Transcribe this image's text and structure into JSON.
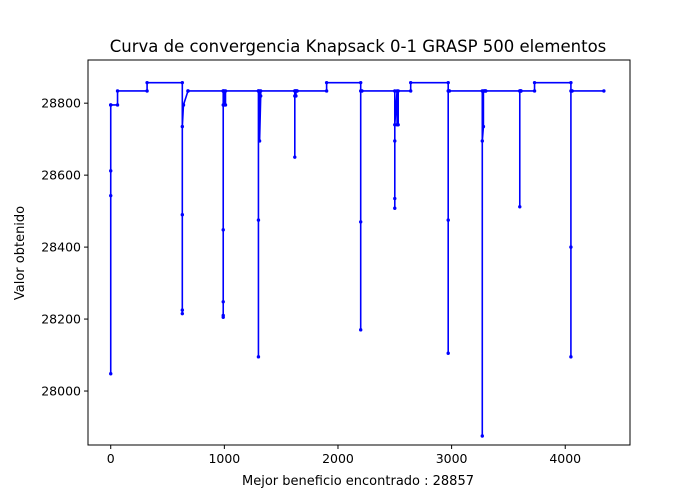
{
  "chart_data": {
    "type": "line",
    "title": "Curva de convergencia Knapsack 0-1 GRASP 500 elementos",
    "xlabel": "Mejor beneficio encontrado : 28857",
    "ylabel": "Valor obtenido",
    "xlim": [
      -200,
      4570
    ],
    "ylim": [
      27850,
      28920
    ],
    "xticks": [
      0,
      1000,
      2000,
      3000,
      4000
    ],
    "xtick_labels": [
      "0",
      "1000",
      "2000",
      "3000",
      "4000"
    ],
    "yticks": [
      28000,
      28200,
      28400,
      28600,
      28800
    ],
    "ytick_labels": [
      "28000",
      "28200",
      "28400",
      "28600",
      "28800"
    ],
    "grid": false,
    "marker": "dot",
    "series": [
      {
        "color": "#0000ff",
        "x": [
          0,
          0,
          0,
          0,
          0,
          60,
          60,
          320,
          320,
          630,
          630,
          630,
          630,
          630,
          640,
          640,
          680,
          680,
          990,
          990,
          990,
          990,
          990,
          990,
          990,
          1000,
          1000,
          1010,
          1010,
          1300,
          1300,
          1300,
          1300,
          1310,
          1310,
          1320,
          1320,
          1620,
          1620,
          1620,
          1620,
          1630,
          1630,
          1630,
          1640,
          1640,
          1900,
          1900,
          2200,
          2200,
          2200,
          2200,
          2210,
          2210,
          2500,
          2500,
          2500,
          2500,
          2500,
          2520,
          2520,
          2530,
          2530,
          2640,
          2640,
          2970,
          2970,
          2970,
          2970,
          2980,
          2980,
          3270,
          3270,
          3270,
          3280,
          3280,
          3290,
          3290,
          3300,
          3300,
          3600,
          3600,
          3600,
          3610,
          3610,
          3610,
          3730,
          3730,
          4050,
          4050,
          4050,
          4050,
          4060,
          4060,
          4340
        ],
        "y": [
          28795,
          28048,
          28543,
          28612,
          28795,
          28795,
          28834,
          28834,
          28857,
          28857,
          28215,
          28225,
          28490,
          28735,
          28795,
          28795,
          28834,
          28834,
          28834,
          28205,
          28210,
          28248,
          28448,
          28795,
          28834,
          28834,
          28795,
          28795,
          28834,
          28834,
          28095,
          28475,
          28834,
          28834,
          28695,
          28820,
          28834,
          28834,
          28650,
          28820,
          28834,
          28834,
          28820,
          28834,
          28834,
          28834,
          28834,
          28857,
          28857,
          28170,
          28470,
          28834,
          28834,
          28834,
          28834,
          28508,
          28535,
          28695,
          28740,
          28834,
          28740,
          28740,
          28834,
          28834,
          28857,
          28857,
          28105,
          28475,
          28834,
          28834,
          28834,
          28834,
          27875,
          28695,
          28735,
          28834,
          28834,
          28834,
          28834,
          28834,
          28834,
          28512,
          28834,
          28834,
          28834,
          28834,
          28834,
          28857,
          28857,
          28095,
          28400,
          28834,
          28834,
          28834,
          28834
        ]
      }
    ]
  }
}
